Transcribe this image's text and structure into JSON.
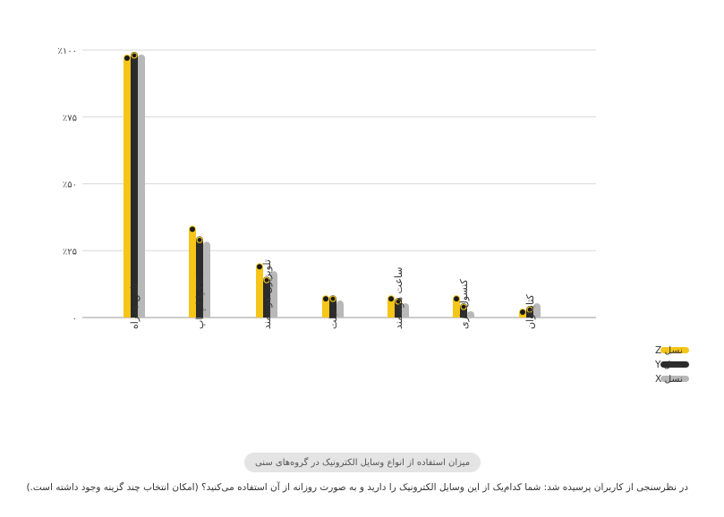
{
  "chart_data": {
    "type": "bar",
    "categories": [
      "تلفن همراه",
      "PC یا لپ‌تاپ",
      "تلویزیون هوشمند",
      "تبلت",
      "ساعت هوشمند",
      "کنسول بازی",
      "کتابخوان"
    ],
    "series": [
      {
        "name": "نسل Z",
        "color": "#f5c518",
        "values": [
          97,
          33,
          19,
          7,
          7,
          7,
          2
        ]
      },
      {
        "name": "نسل Y",
        "color": "#2b2b2b",
        "values": [
          98,
          29,
          14,
          7,
          6,
          4,
          3
        ]
      },
      {
        "name": "نسل X",
        "color": "#b8b8b8",
        "values": [
          97,
          27,
          16,
          5,
          4,
          1,
          4
        ]
      }
    ],
    "yticks": [
      {
        "value": 0,
        "label": "۰"
      },
      {
        "value": 25,
        "label": "٪۲۵"
      },
      {
        "value": 50,
        "label": "٪۵۰"
      },
      {
        "value": 75,
        "label": "٪۷۵"
      },
      {
        "value": 100,
        "label": "٪۱۰۰"
      }
    ],
    "ylim": [
      0,
      100
    ],
    "grid": true,
    "legend_position": "bottom-right",
    "title": "میزان استفاده از انواع وسایل الکترونیک در گروه‌های سنی",
    "xlabel": "",
    "ylabel": ""
  },
  "footer_text": "در نظرسنجی از کاربران پرسیده شد: شما کدام‌یک از این وسایل الکترونیک را دارید و به صورت روزانه از آن استفاده می‌کنید؟ (امکان انتخاب چند گزینه وجود داشته است.)"
}
